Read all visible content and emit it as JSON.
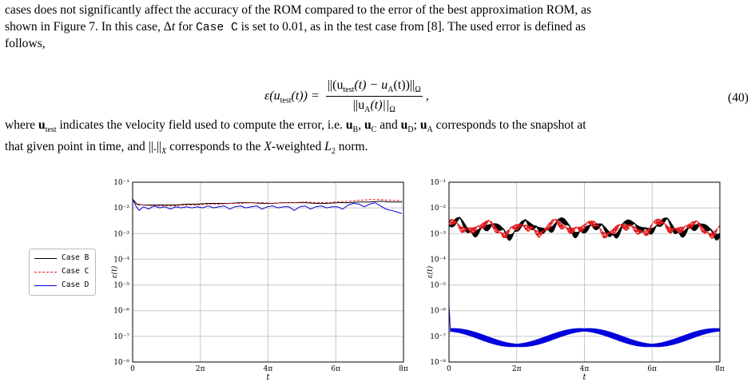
{
  "text": {
    "line1": "cases does not significantly affect the accuracy of the ROM compared to the error of the best approximation ROM, as",
    "line2a": "shown in Figure 7. In this case, Δ",
    "line2b": "t",
    "line2c": " for ",
    "line2code": "Case C",
    "line2d": " is set to 0.01, as in the test case from [8]. The used error is defined as",
    "line3": "follows,",
    "eq_lhs": "ε(u",
    "eq_lhs_sub": "test",
    "eq_lhs_end": "(t)) =",
    "eq_num": "||(u",
    "eq_num_sub": "test",
    "eq_num_mid": "(t) − u",
    "eq_num_sub2": "A",
    "eq_num_end": "(t))||",
    "eq_num_sub3": "Ω",
    "eq_den": "||u",
    "eq_den_sub": "A",
    "eq_den_end": "(t)||",
    "eq_den_sub2": "Ω",
    "eq_comma": ",",
    "eq_number": "(40)",
    "where1a": "where ",
    "where1b": "u",
    "where1c": "test",
    "where1d": " indicates the velocity field used to compute the error, i.e. ",
    "where1e": "u",
    "where1f": "B",
    "where1g": ", ",
    "where1h": "u",
    "where1i": "C",
    "where1j": " and ",
    "where1k": "u",
    "where1l": "D",
    "where1m": "; ",
    "where1n": "u",
    "where1o": "A",
    "where1p": " corresponds to the snapshot at",
    "where2a": "that given point in time, and ||.||",
    "where2b": "X",
    "where2c": " corresponds to the ",
    "where2d": "X",
    "where2e": "-weighted ",
    "where2f": "L",
    "where2g": "2",
    "where2h": " norm."
  },
  "legend": {
    "case_b": "Case B",
    "case_c": "Case C",
    "case_d": "Case D"
  },
  "chart_data": [
    {
      "type": "line",
      "xlabel": "t",
      "ylabel": "ε(t)",
      "xlim": [
        0,
        25.1327
      ],
      "ylim_log10": [
        -8,
        -1
      ],
      "yscale": "log",
      "grid": true,
      "xticks": [
        0,
        6.2832,
        12.5664,
        18.8496,
        25.1327
      ],
      "xtick_labels": [
        "0",
        "2π",
        "4π",
        "6π",
        "8π"
      ],
      "ytick_labels": [
        "10⁻¹",
        "10⁻²",
        "10⁻³",
        "10⁻⁴",
        "10⁻⁵",
        "10⁻⁶",
        "10⁻⁷",
        "10⁻⁸"
      ],
      "series": [
        {
          "name": "Case B",
          "color": "#000000",
          "style": "solid",
          "x": [
            0,
            0.4,
            1,
            2,
            3,
            4,
            5,
            6,
            7,
            8,
            9,
            10,
            11,
            12,
            13,
            14,
            15,
            16,
            17,
            18,
            19,
            20,
            21,
            22,
            23,
            24,
            25
          ],
          "y": [
            0.022,
            0.014,
            0.013,
            0.013,
            0.013,
            0.013,
            0.014,
            0.014,
            0.015,
            0.015,
            0.015,
            0.016,
            0.016,
            0.015,
            0.015,
            0.016,
            0.016,
            0.016,
            0.015,
            0.015,
            0.016,
            0.016,
            0.017,
            0.017,
            0.018,
            0.017,
            0.017
          ]
        },
        {
          "name": "Case C",
          "color": "#e31a1c",
          "style": "dashed",
          "x": [
            0,
            0.4,
            1,
            2,
            3,
            4,
            5,
            6,
            7,
            8,
            9,
            10,
            11,
            12,
            13,
            14,
            15,
            16,
            17,
            18,
            19,
            20,
            21,
            22,
            23,
            24,
            25
          ],
          "y": [
            0.022,
            0.013,
            0.013,
            0.012,
            0.012,
            0.012,
            0.013,
            0.013,
            0.014,
            0.014,
            0.015,
            0.015,
            0.016,
            0.016,
            0.015,
            0.016,
            0.016,
            0.017,
            0.016,
            0.016,
            0.017,
            0.018,
            0.02,
            0.021,
            0.021,
            0.02,
            0.019
          ]
        },
        {
          "name": "Case D",
          "color": "#0000dd",
          "style": "solid",
          "x": [
            0,
            0.3,
            0.6,
            1,
            1.5,
            2,
            2.5,
            3,
            3.5,
            4,
            4.5,
            5,
            5.5,
            6,
            6.5,
            7,
            7.5,
            8,
            8.5,
            9,
            9.5,
            10,
            10.5,
            11,
            11.5,
            12,
            12.5,
            13,
            13.5,
            14,
            14.5,
            15,
            15.5,
            16,
            16.5,
            17,
            17.5,
            18,
            18.5,
            19,
            19.5,
            20,
            20.5,
            21,
            21.5,
            22,
            22.5,
            23,
            23.5,
            24,
            24.5,
            25
          ],
          "y": [
            0.022,
            0.012,
            0.008,
            0.011,
            0.009,
            0.012,
            0.01,
            0.011,
            0.009,
            0.011,
            0.01,
            0.011,
            0.01,
            0.011,
            0.01,
            0.012,
            0.01,
            0.011,
            0.012,
            0.009,
            0.011,
            0.012,
            0.01,
            0.011,
            0.012,
            0.009,
            0.011,
            0.012,
            0.01,
            0.011,
            0.011,
            0.008,
            0.011,
            0.012,
            0.009,
            0.011,
            0.012,
            0.01,
            0.011,
            0.011,
            0.009,
            0.013,
            0.015,
            0.014,
            0.011,
            0.014,
            0.016,
            0.012,
            0.009,
            0.008,
            0.007,
            0.006
          ]
        }
      ]
    },
    {
      "type": "line",
      "xlabel": "t",
      "ylabel": "ε(t)",
      "xlim": [
        0,
        25.1327
      ],
      "ylim_log10": [
        -8,
        -1
      ],
      "yscale": "log",
      "grid": true,
      "xticks": [
        0,
        6.2832,
        12.5664,
        18.8496,
        25.1327
      ],
      "xtick_labels": [
        "0",
        "2π",
        "4π",
        "6π",
        "8π"
      ],
      "ytick_labels": [
        "10⁻¹",
        "10⁻²",
        "10⁻³",
        "10⁻⁴",
        "10⁻⁵",
        "10⁻⁶",
        "10⁻⁷",
        "10⁻⁸"
      ],
      "series": [
        {
          "name": "Case B",
          "color": "#000000",
          "style": "solid",
          "pattern": "oscillating",
          "log10_center": -2.7,
          "log10_amplitude": 0.35,
          "period": 0.16
        },
        {
          "name": "Case C",
          "color": "#e31a1c",
          "style": "dashed",
          "pattern": "oscillating",
          "log10_center": -2.7,
          "log10_amplitude": 0.3,
          "period": 0.16
        },
        {
          "name": "Case D",
          "color": "#0000dd",
          "style": "solid",
          "pattern": "beating",
          "start_log10": -5.8,
          "log10_center": -6.9,
          "log10_amplitude": 0.12,
          "period": 0.16
        }
      ]
    }
  ]
}
